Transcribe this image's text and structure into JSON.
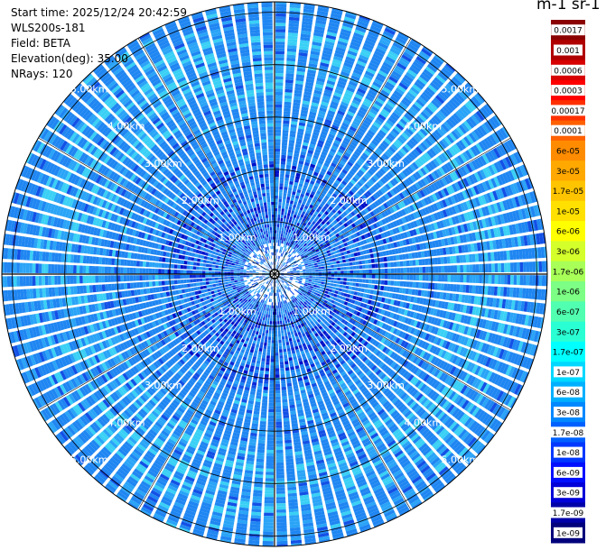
{
  "info": {
    "start_time": "Start time: 2025/12/24 20:42:59",
    "instrument": "WLS200s-181",
    "field": "Field: BETA",
    "elevation": "Elevation(deg): 35.00",
    "nrays": "NRays: 120"
  },
  "colorbar": {
    "title": "m-1 sr-1",
    "labels": [
      "0.0017",
      "0.001",
      "0.0006",
      "0.0003",
      "0.00017",
      "0.0001",
      "6e-05",
      "3e-05",
      "1.7e-05",
      "1e-05",
      "6e-06",
      "3e-06",
      "1.7e-06",
      "1e-06",
      "6e-07",
      "3e-07",
      "1.7e-07",
      "1e-07",
      "6e-08",
      "3e-08",
      "1.7e-08",
      "1e-08",
      "6e-09",
      "3e-09",
      "1.7e-09",
      "1e-09"
    ],
    "colors": [
      "#8b0000",
      "#b00000",
      "#d80000",
      "#ff0000",
      "#ff3000",
      "#ff6000",
      "#ff8c00",
      "#ffa800",
      "#ffc400",
      "#ffe000",
      "#ffff00",
      "#d4ff2a",
      "#a8ff58",
      "#7cff84",
      "#50ffb0",
      "#2affd4",
      "#00ffff",
      "#00d8ff",
      "#00b0ff",
      "#0088ff",
      "#0060ff",
      "#0038ff",
      "#0010ff",
      "#0000d8",
      "#0000a8",
      "#00007c"
    ]
  },
  "chart_data": {
    "type": "heatmap",
    "projection": "polar PPI",
    "field": "BETA",
    "units": "m-1 sr-1",
    "nrays": 120,
    "max_range_km": 5.2,
    "range_rings_km": [
      1.0,
      2.0,
      3.0,
      4.0,
      5.0
    ],
    "range_ring_labels": [
      "1.00km",
      "2.00km",
      "3.00km",
      "4.00km",
      "5.00km"
    ],
    "color_scale": "logarithmic",
    "value_range": [
      1e-09,
      0.0017
    ],
    "typical_values": "mostly 1e-07 to 6e-08 (light/medium blue) with sparse darker blue gates near 1e-08 to 3e-09 close to the center and lighter cyan bands near 3-5 km"
  }
}
